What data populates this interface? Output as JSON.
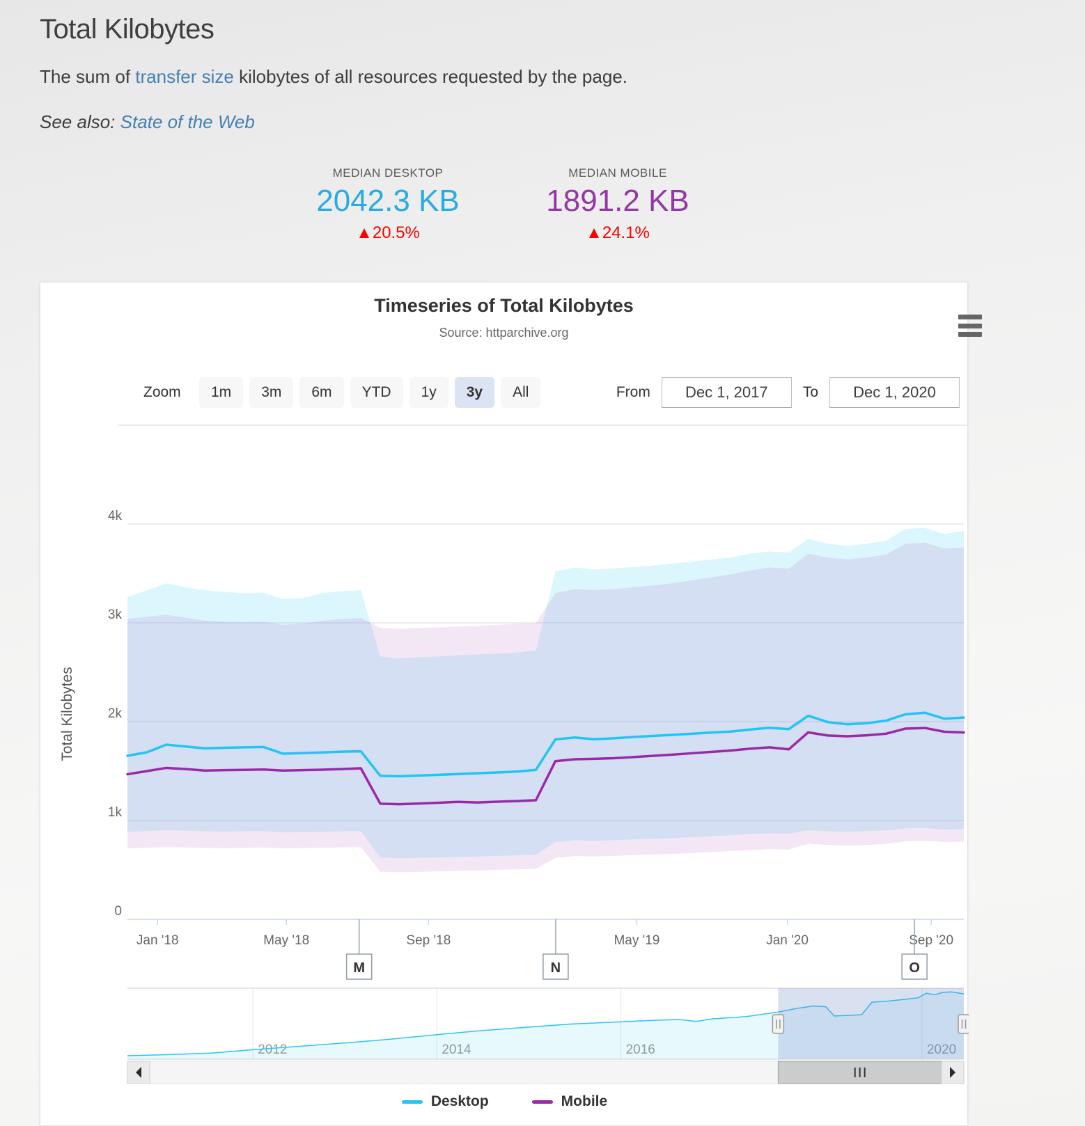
{
  "page": {
    "title": "Total Kilobytes",
    "description_prefix": "The sum of ",
    "description_link": "transfer size",
    "description_suffix": " kilobytes of all resources requested by the page.",
    "see_also_label": "See also: ",
    "see_also_link": "State of the Web"
  },
  "stats": {
    "desktop": {
      "label": "MEDIAN DESKTOP",
      "value": "2042.3 KB",
      "change": "▲20.5%"
    },
    "mobile": {
      "label": "MEDIAN MOBILE",
      "value": "1891.2 KB",
      "change": "▲24.1%"
    }
  },
  "chart": {
    "zoom_label": "Zoom",
    "zoom_buttons": [
      "1m",
      "3m",
      "6m",
      "YTD",
      "1y",
      "3y",
      "All"
    ],
    "selected_zoom": "3y",
    "from_label": "From",
    "from_value": "Dec 1, 2017",
    "to_label": "To",
    "to_value": "Dec 1, 2020"
  },
  "colors": {
    "desktop_line": "#22c4f4",
    "mobile_line": "#9c28a8",
    "desktop_stat": "#29abe2",
    "mobile_stat": "#9237a4",
    "change_red": "#fa0000",
    "link_blue": "#4580b4",
    "axis_line": "#ccd6eb",
    "grid_line": "#dcdce5",
    "navigator_mask": "rgba(102,133,194,0.25)"
  },
  "chart_data": {
    "type": "line",
    "title": "Timeseries of Total Kilobytes",
    "subtitle": "Source: httparchive.org",
    "ylabel": "Total Kilobytes",
    "ylim": [
      0,
      4000
    ],
    "ytick_values": [
      0,
      1000,
      2000,
      3000,
      4000
    ],
    "ytick_labels": [
      "0",
      "1k",
      "2k",
      "3k",
      "4k"
    ],
    "legend_position": "bottom",
    "x_dates": [
      "2017-12-01",
      "2017-12-15",
      "2018-01-01",
      "2018-01-15",
      "2018-02-01",
      "2018-02-15",
      "2018-03-01",
      "2018-03-15",
      "2018-04-01",
      "2018-04-15",
      "2018-05-01",
      "2018-05-15",
      "2018-06-01",
      "2018-06-15",
      "2018-07-01",
      "2018-08-01",
      "2018-09-01",
      "2018-10-01",
      "2018-11-01",
      "2018-12-01",
      "2019-01-01",
      "2019-02-01",
      "2019-03-01",
      "2019-04-01",
      "2019-05-01",
      "2019-06-01",
      "2019-07-01",
      "2019-08-01",
      "2019-09-01",
      "2019-10-01",
      "2019-11-01",
      "2019-12-01",
      "2020-01-01",
      "2020-02-01",
      "2020-03-01",
      "2020-04-01",
      "2020-05-01",
      "2020-06-01",
      "2020-07-01",
      "2020-08-01",
      "2020-09-01",
      "2020-10-01",
      "2020-11-01",
      "2020-12-01"
    ],
    "x_ticks": [
      {
        "label": "Jan '18",
        "f": 0.036
      },
      {
        "label": "May '18",
        "f": 0.19
      },
      {
        "label": "Sep '18",
        "f": 0.36
      },
      {
        "label": "May '19",
        "f": 0.609
      },
      {
        "label": "Jan '20",
        "f": 0.789
      },
      {
        "label": "Sep '20",
        "f": 0.961
      }
    ],
    "series": [
      {
        "name": "Desktop",
        "color": "#22c4f4",
        "band_color": "rgba(34,196,244,0.16)",
        "values": [
          1655,
          1690,
          1768,
          1748,
          1730,
          1736,
          1740,
          1744,
          1676,
          1682,
          1688,
          1696,
          1700,
          1452,
          1448,
          1455,
          1462,
          1470,
          1478,
          1486,
          1495,
          1512,
          1820,
          1840,
          1822,
          1832,
          1845,
          1856,
          1866,
          1878,
          1890,
          1900,
          1920,
          1938,
          1924,
          2060,
          1996,
          1974,
          1984,
          2010,
          2075,
          2090,
          2030,
          2042
        ],
        "upper": [
          3260,
          3330,
          3400,
          3360,
          3330,
          3312,
          3300,
          3306,
          3240,
          3252,
          3300,
          3320,
          3330,
          2660,
          2640,
          2652,
          2660,
          2672,
          2680,
          2690,
          2700,
          2720,
          3520,
          3560,
          3540,
          3552,
          3564,
          3580,
          3600,
          3620,
          3640,
          3660,
          3700,
          3724,
          3710,
          3850,
          3800,
          3780,
          3800,
          3832,
          3950,
          3960,
          3900,
          3930
        ],
        "lower": [
          885,
          892,
          902,
          896,
          890,
          888,
          890,
          892,
          880,
          883,
          886,
          890,
          892,
          625,
          618,
          622,
          626,
          632,
          636,
          642,
          646,
          652,
          782,
          800,
          795,
          800,
          808,
          814,
          820,
          830,
          840,
          850,
          862,
          870,
          866,
          900,
          890,
          886,
          892,
          900,
          920,
          925,
          906,
          912
        ]
      },
      {
        "name": "Mobile",
        "color": "#9c28a8",
        "band_color": "rgba(156,40,168,0.11)",
        "values": [
          1468,
          1500,
          1532,
          1520,
          1505,
          1510,
          1512,
          1516,
          1505,
          1510,
          1514,
          1520,
          1528,
          1170,
          1165,
          1172,
          1180,
          1188,
          1182,
          1190,
          1196,
          1205,
          1600,
          1620,
          1624,
          1630,
          1642,
          1654,
          1666,
          1680,
          1694,
          1708,
          1726,
          1740,
          1720,
          1892,
          1860,
          1852,
          1862,
          1878,
          1930,
          1936,
          1898,
          1891
        ],
        "upper": [
          3040,
          3062,
          3082,
          3052,
          3022,
          3012,
          3006,
          3012,
          2980,
          2992,
          3020,
          3040,
          3050,
          2950,
          2940,
          2950,
          2956,
          2962,
          2970,
          2980,
          2990,
          3000,
          3300,
          3340,
          3330,
          3342,
          3360,
          3380,
          3400,
          3430,
          3460,
          3490,
          3530,
          3560,
          3548,
          3700,
          3660,
          3642,
          3660,
          3692,
          3800,
          3812,
          3752,
          3762
        ],
        "lower": [
          718,
          724,
          730,
          726,
          722,
          720,
          722,
          726,
          718,
          721,
          724,
          727,
          730,
          482,
          476,
          480,
          485,
          490,
          494,
          500,
          505,
          510,
          620,
          640,
          636,
          641,
          650,
          656,
          662,
          670,
          680,
          690,
          700,
          710,
          706,
          762,
          752,
          746,
          752,
          762,
          790,
          795,
          780,
          786
        ]
      }
    ],
    "flags": [
      {
        "label": "M",
        "f": 0.277
      },
      {
        "label": "N",
        "f": 0.512
      },
      {
        "label": "O",
        "f": 0.941
      }
    ],
    "navigator": {
      "range": [
        400,
        2100
      ],
      "selection": [
        0.778,
        1.0
      ],
      "year_ticks": [
        {
          "label": "2012",
          "f": 0.15
        },
        {
          "label": "2014",
          "f": 0.37
        },
        {
          "label": "2016",
          "f": 0.59
        },
        {
          "label": "2020",
          "f": 0.95
        }
      ],
      "points": [
        [
          0,
          400
        ],
        [
          0.05,
          430
        ],
        [
          0.1,
          470
        ],
        [
          0.15,
          560
        ],
        [
          0.2,
          640
        ],
        [
          0.26,
          740
        ],
        [
          0.31,
          830
        ],
        [
          0.37,
          960
        ],
        [
          0.42,
          1060
        ],
        [
          0.48,
          1160
        ],
        [
          0.53,
          1240
        ],
        [
          0.59,
          1300
        ],
        [
          0.63,
          1340
        ],
        [
          0.66,
          1360
        ],
        [
          0.68,
          1310
        ],
        [
          0.7,
          1380
        ],
        [
          0.74,
          1440
        ],
        [
          0.778,
          1560
        ],
        [
          0.8,
          1655
        ],
        [
          0.82,
          1720
        ],
        [
          0.835,
          1700
        ],
        [
          0.845,
          1455
        ],
        [
          0.862,
          1470
        ],
        [
          0.878,
          1490
        ],
        [
          0.89,
          1820
        ],
        [
          0.91,
          1850
        ],
        [
          0.93,
          1900
        ],
        [
          0.945,
          1935
        ],
        [
          0.955,
          2060
        ],
        [
          0.965,
          2020
        ],
        [
          0.975,
          2080
        ],
        [
          0.985,
          2095
        ],
        [
          1.0,
          2042
        ]
      ]
    }
  }
}
